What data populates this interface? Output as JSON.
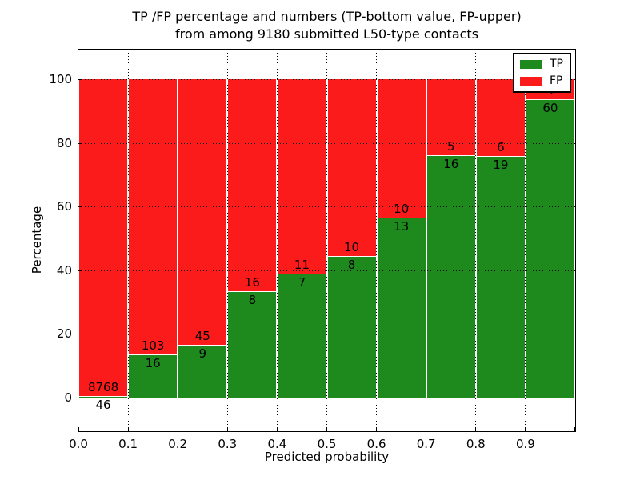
{
  "chart_data": {
    "type": "bar",
    "stacked": true,
    "normalized": "each bin TP+FP = 100%",
    "title_lines": [
      "TP /FP percentage and numbers (TP-bottom value, FP-upper)",
      "from among 9180 submitted L50-type contacts"
    ],
    "xlabel": "Predicted probability",
    "ylabel": "Percentage",
    "total_contacts": 9180,
    "x_bin_edges": [
      0.0,
      0.1,
      0.2,
      0.3,
      0.4,
      0.5,
      0.6,
      0.7,
      0.8,
      0.9,
      1.0
    ],
    "x_tick_labels": [
      "0.0",
      "0.1",
      "0.2",
      "0.3",
      "0.4",
      "0.5",
      "0.6",
      "0.7",
      "0.8",
      "0.9"
    ],
    "y_ticks": [
      0,
      20,
      40,
      60,
      80,
      100
    ],
    "y_tick_labels": [
      "0",
      "20",
      "40",
      "60",
      "80",
      "100"
    ],
    "xlim": [
      0.0,
      1.0
    ],
    "ylim_shown": [
      -11,
      109
    ],
    "grid": "dotted black, drawn over bars",
    "annotation_rule": "FP count above TP/FP boundary, TP count below boundary",
    "series": [
      {
        "name": "TP",
        "color": "#1e8a1e",
        "counts": [
          46,
          16,
          9,
          8,
          7,
          8,
          13,
          16,
          19,
          60
        ],
        "percent": [
          0.52,
          13.45,
          16.67,
          33.33,
          38.89,
          44.44,
          56.52,
          76.19,
          76,
          93.75
        ]
      },
      {
        "name": "FP",
        "color": "#fb1b1b",
        "counts": [
          8768,
          103,
          45,
          16,
          11,
          10,
          10,
          5,
          6,
          4
        ],
        "percent": [
          99.48,
          86.55,
          83.33,
          66.67,
          61.11,
          55.56,
          43.48,
          23.81,
          24,
          6.25
        ]
      }
    ],
    "legend": {
      "position": "upper-right",
      "entries": [
        {
          "label": "TP",
          "color": "#1e8a1e"
        },
        {
          "label": "FP",
          "color": "#fb1b1b"
        }
      ]
    }
  }
}
